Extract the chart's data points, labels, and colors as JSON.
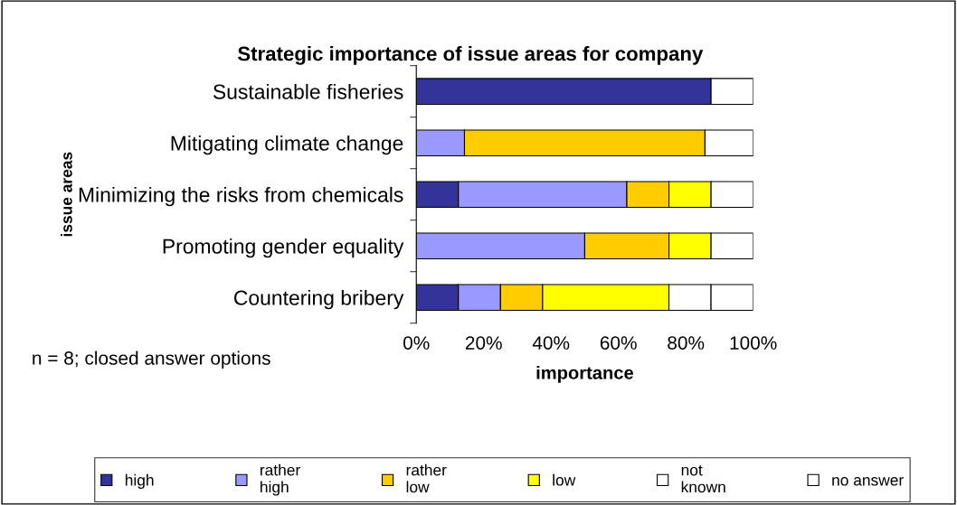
{
  "chart_data": {
    "type": "bar",
    "orientation": "horizontal",
    "stacked": true,
    "title": "Strategic importance of issue areas for company",
    "xlabel": "importance",
    "ylabel": "issue areas",
    "categories": [
      "Sustainable fisheries",
      "Mitigating climate change",
      "Minimizing the risks from chemicals",
      "Promoting gender equality",
      "Countering bribery"
    ],
    "series": [
      {
        "name": "high",
        "color": "#333399",
        "values": [
          87.5,
          0,
          12.5,
          0,
          12.5
        ]
      },
      {
        "name": "rather\nhigh",
        "color": "#9999ff",
        "values": [
          0,
          14.3,
          50,
          50,
          12.5
        ]
      },
      {
        "name": "rather\nlow",
        "color": "#ffcc00",
        "values": [
          0,
          71.4,
          12.5,
          25,
          12.5
        ]
      },
      {
        "name": "low",
        "color": "#ffff00",
        "values": [
          0,
          0,
          12.5,
          12.5,
          37.5
        ]
      },
      {
        "name": "not\nknown",
        "color": "#ffffff",
        "values": [
          0,
          0,
          0,
          0,
          12.5
        ]
      },
      {
        "name": "no answer",
        "color": "#ffffff",
        "values": [
          12.5,
          14.3,
          12.5,
          12.5,
          12.5
        ]
      }
    ],
    "xlim": [
      0,
      100
    ],
    "xticks": [
      {
        "value": 0,
        "label": "0%"
      },
      {
        "value": 20,
        "label": "20%"
      },
      {
        "value": 40,
        "label": "40%"
      },
      {
        "value": 60,
        "label": "60%"
      },
      {
        "value": 80,
        "label": "80%"
      },
      {
        "value": 100,
        "label": "100%"
      }
    ],
    "grid": false,
    "legend": "bottom",
    "annotations": [
      "n = 8; closed answer options"
    ]
  }
}
